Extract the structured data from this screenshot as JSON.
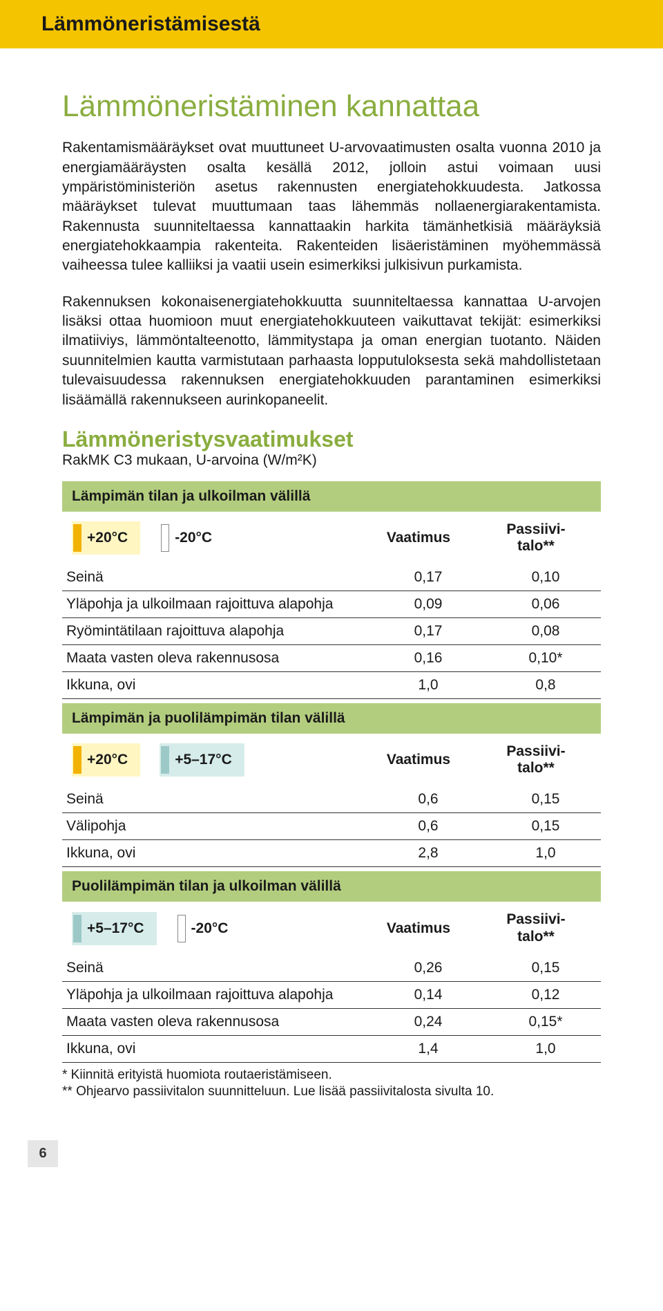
{
  "header": {
    "title": "Lämmöneristämisestä"
  },
  "main_title": "Lämmöneristäminen kannattaa",
  "paragraphs": {
    "p1": "Rakentamismääräykset ovat muuttuneet U-arvovaatimusten osalta vuonna 2010 ja energiamääräysten osalta kesällä 2012, jolloin astui voimaan uusi ympäristöministeriön asetus rakennusten energiatehokkuudesta. Jatkossa määräykset tulevat muuttumaan taas lähemmäs nollaenergiarakentamista. Rakennusta suunniteltaessa kannattaakin harkita tämänhetkisiä määräyksiä energiatehokkaampia rakenteita. Rakenteiden lisäeristäminen myöhemmässä vaiheessa tulee kalliiksi ja vaatii usein esimerkiksi julkisivun purkamista.",
    "p2": "Rakennuksen kokonaisenergiatehokkuutta suunniteltaessa kannattaa U-arvojen lisäksi ottaa huomioon muut energiatehokkuuteen vaikuttavat tekijät: esimerkiksi ilmatiiviys, lämmöntalteenotto, lämmitystapa ja oman energian tuotanto. Näiden suunnitelmien kautta varmistutaan parhaasta lopputuloksesta sekä mahdollistetaan tulevaisuudessa rakennuksen energiatehokkuuden parantaminen esimerkiksi lisäämällä rakennukseen aurinkopaneelit."
  },
  "requirements": {
    "title": "Lämmöneristysvaatimukset",
    "subtitle": "RakMK C3 mukaan, U-arvoina (W/m²K)",
    "col_vaatimus": "Vaatimus",
    "col_passiivi": "Passiivi-talo**"
  },
  "colors": {
    "band_green": "#b3cd7f",
    "title_green": "#8aad3f",
    "header_yellow": "#f5c400",
    "chip_yellow_bg": "#fff6c2",
    "chip_yellow_bar": "#f2b200",
    "chip_blue_bg": "#d6ecea",
    "chip_blue_bar": "#9cc9c7"
  },
  "sections": [
    {
      "band": "Lämpimän tilan ja ulkoilman välillä",
      "t1": "+20°C",
      "t1_bg": "#fff6c2",
      "t1_bar": "#f2b200",
      "t2": "-20°C",
      "t2_bg": "#ffffff",
      "t2_bar": "#ffffff",
      "rows": [
        {
          "label": "Seinä",
          "v": "0,17",
          "p": "0,10"
        },
        {
          "label": "Yläpohja ja ulkoilmaan rajoittuva alapohja",
          "v": "0,09",
          "p": "0,06"
        },
        {
          "label": "Ryömintätilaan rajoittuva alapohja",
          "v": "0,17",
          "p": "0,08"
        },
        {
          "label": "Maata vasten oleva rakennusosa",
          "v": "0,16",
          "p": "0,10*"
        },
        {
          "label": "Ikkuna, ovi",
          "v": "1,0",
          "p": "0,8"
        }
      ]
    },
    {
      "band": "Lämpimän ja puolilämpimän tilan välillä",
      "t1": "+20°C",
      "t1_bg": "#fff6c2",
      "t1_bar": "#f2b200",
      "t2": "+5–17°C",
      "t2_bg": "#d6ecea",
      "t2_bar": "#9cc9c7",
      "rows": [
        {
          "label": "Seinä",
          "v": "0,6",
          "p": "0,15"
        },
        {
          "label": "Välipohja",
          "v": "0,6",
          "p": "0,15"
        },
        {
          "label": "Ikkuna, ovi",
          "v": "2,8",
          "p": "1,0"
        }
      ]
    },
    {
      "band": "Puolilämpimän tilan ja ulkoilman välillä",
      "t1": "+5–17°C",
      "t1_bg": "#d6ecea",
      "t1_bar": "#9cc9c7",
      "t2": "-20°C",
      "t2_bg": "#ffffff",
      "t2_bar": "#ffffff",
      "rows": [
        {
          "label": "Seinä",
          "v": "0,26",
          "p": "0,15"
        },
        {
          "label": "Yläpohja ja ulkoilmaan rajoittuva alapohja",
          "v": "0,14",
          "p": "0,12"
        },
        {
          "label": "Maata vasten oleva rakennusosa",
          "v": "0,24",
          "p": "0,15*"
        },
        {
          "label": "Ikkuna, ovi",
          "v": "1,4",
          "p": "1,0"
        }
      ]
    }
  ],
  "footnotes": {
    "f1": "* Kiinnitä erityistä huomiota routaeristämiseen.",
    "f2": "** Ohjearvo passiivitalon suunnitteluun. Lue lisää passiivitalosta sivulta 10."
  },
  "page_number": "6"
}
